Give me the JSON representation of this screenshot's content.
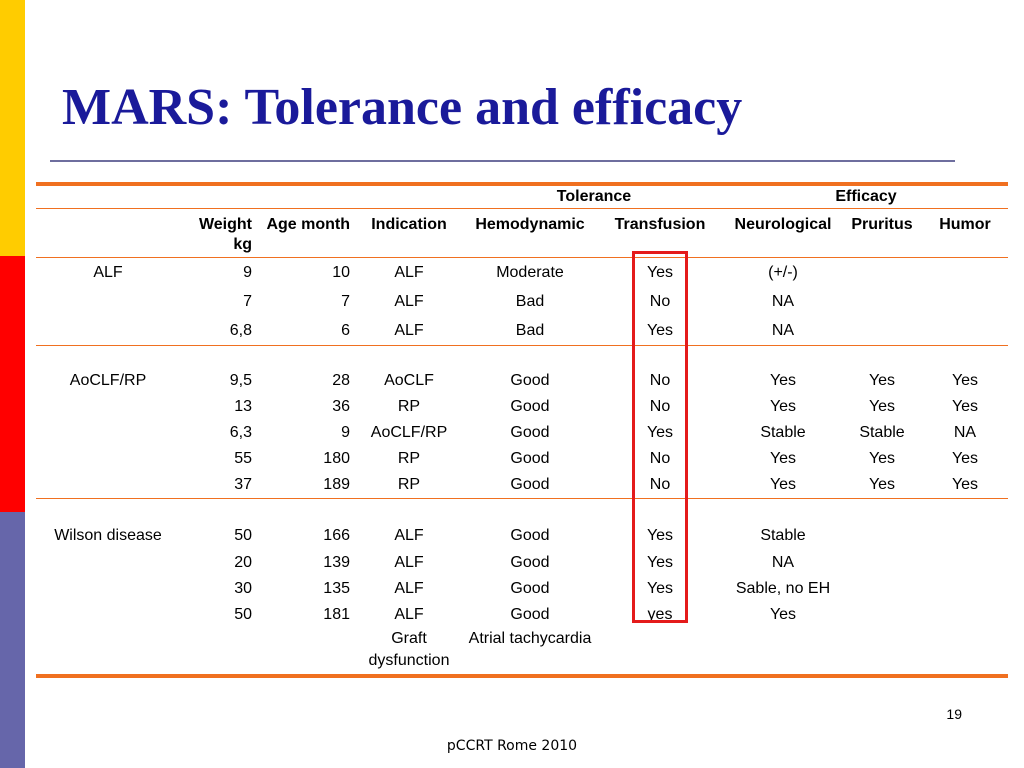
{
  "slide": {
    "title": "MARS: Tolerance and efficacy",
    "page_number": "19",
    "footer": "pCCRT Rome 2010",
    "colors": {
      "title": "#1a1a9a",
      "rule": "#f07020",
      "highlight": "#e41b1b",
      "sidebar": [
        "#ffcc00",
        "#ff0000",
        "#6666aa"
      ]
    }
  },
  "table": {
    "groups": {
      "tolerance": "Tolerance",
      "efficacy": "Efficacy"
    },
    "headers": {
      "weight": "Weight kg",
      "age": "Age month",
      "indication": "Indication",
      "hemodynamic": "Hemodynamic",
      "transfusion": "Transfusion",
      "neurological": "Neurological",
      "pruritus": "Pruritus",
      "humor": "Humor"
    },
    "rows": [
      {
        "group": "ALF",
        "weight": "9",
        "age": "10",
        "indication": "ALF",
        "hemo": "Moderate",
        "transf": "Yes",
        "neuro": "(+/-)",
        "pruritus": "",
        "humor": ""
      },
      {
        "group": "",
        "weight": "7",
        "age": "7",
        "indication": "ALF",
        "hemo": "Bad",
        "transf": "No",
        "neuro": "NA",
        "pruritus": "",
        "humor": ""
      },
      {
        "group": "",
        "weight": "6,8",
        "age": "6",
        "indication": "ALF",
        "hemo": "Bad",
        "transf": "Yes",
        "neuro": "NA",
        "pruritus": "",
        "humor": ""
      },
      {
        "group": "AoCLF/RP",
        "weight": "9,5",
        "age": "28",
        "indication": "AoCLF",
        "hemo": "Good",
        "transf": "No",
        "neuro": "Yes",
        "pruritus": "Yes",
        "humor": "Yes"
      },
      {
        "group": "",
        "weight": "13",
        "age": "36",
        "indication": "RP",
        "hemo": "Good",
        "transf": "No",
        "neuro": "Yes",
        "pruritus": "Yes",
        "humor": "Yes"
      },
      {
        "group": "",
        "weight": "6,3",
        "age": "9",
        "indication": "AoCLF/RP",
        "hemo": "Good",
        "transf": "Yes",
        "neuro": "Stable",
        "pruritus": "Stable",
        "humor": "NA"
      },
      {
        "group": "",
        "weight": "55",
        "age": "180",
        "indication": "RP",
        "hemo": "Good",
        "transf": "No",
        "neuro": "Yes",
        "pruritus": "Yes",
        "humor": "Yes"
      },
      {
        "group": "",
        "weight": "37",
        "age": "189",
        "indication": "RP",
        "hemo": "Good",
        "transf": "No",
        "neuro": "Yes",
        "pruritus": "Yes",
        "humor": "Yes"
      },
      {
        "group": "Wilson disease",
        "weight": "50",
        "age": "166",
        "indication": "ALF",
        "hemo": "Good",
        "transf": "Yes",
        "neuro": "Stable",
        "pruritus": "",
        "humor": ""
      },
      {
        "group": "",
        "weight": "20",
        "age": "139",
        "indication": "ALF",
        "hemo": "Good",
        "transf": "Yes",
        "neuro": "NA",
        "pruritus": "",
        "humor": ""
      },
      {
        "group": "",
        "weight": "30",
        "age": "135",
        "indication": "ALF",
        "hemo": "Good",
        "transf": "Yes",
        "neuro": "Sable, no EH",
        "pruritus": "",
        "humor": ""
      },
      {
        "group": "",
        "weight": "50",
        "age": "181",
        "indication": "ALF",
        "hemo": "Good",
        "transf": "yes",
        "neuro": "Yes",
        "pruritus": "",
        "humor": ""
      }
    ],
    "footnote": {
      "indication": "Graft dysfunction",
      "hemo": "Atrial tachycardia"
    }
  }
}
